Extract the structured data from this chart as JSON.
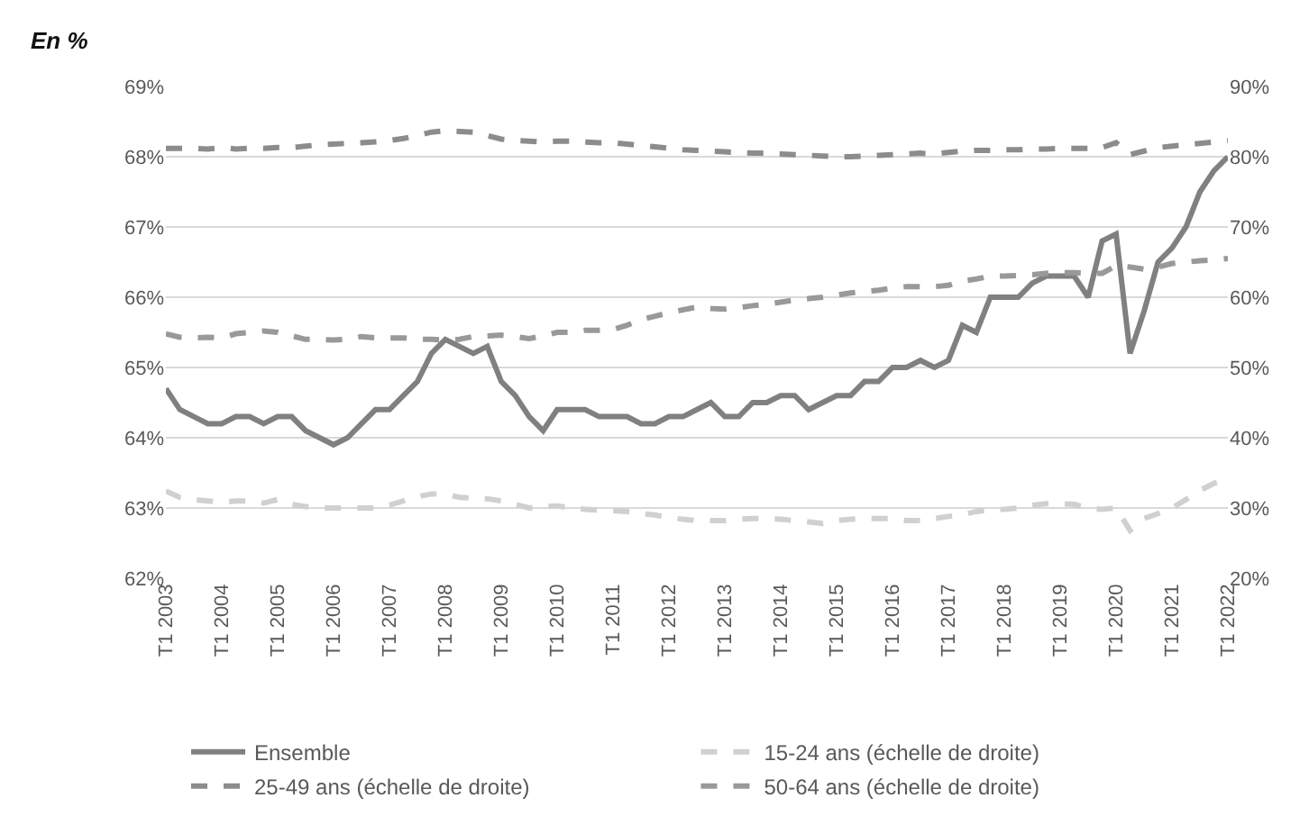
{
  "chart_data": {
    "type": "line",
    "annotations": [
      "En %"
    ],
    "categories": [
      "T1 2003",
      null,
      null,
      null,
      "T1 2004",
      null,
      null,
      null,
      "T1 2005",
      null,
      null,
      null,
      "T1 2006",
      null,
      null,
      null,
      "T1 2007",
      null,
      null,
      null,
      "T1 2008",
      null,
      null,
      null,
      "T1 2009",
      null,
      null,
      null,
      "T1 2010",
      null,
      null,
      null,
      "T1 2011",
      null,
      null,
      null,
      "T1 2012",
      null,
      null,
      null,
      "T1 2013",
      null,
      null,
      null,
      "T1 2014",
      null,
      null,
      null,
      "T1 2015",
      null,
      null,
      null,
      "T1 2016",
      null,
      null,
      null,
      "T1 2017",
      null,
      null,
      null,
      "T1 2018",
      null,
      null,
      null,
      "T1 2019",
      null,
      null,
      null,
      "T1 2020",
      null,
      null,
      null,
      "T1 2021",
      null,
      null,
      null,
      "T1 2022"
    ],
    "ylim": [
      62,
      69
    ],
    "yticks": [
      {
        "value": 62,
        "label": "62%"
      },
      {
        "value": 63,
        "label": "63%"
      },
      {
        "value": 64,
        "label": "64%"
      },
      {
        "value": 65,
        "label": "65%"
      },
      {
        "value": 66,
        "label": "66%"
      },
      {
        "value": 67,
        "label": "67%"
      },
      {
        "value": 68,
        "label": "68%"
      },
      {
        "value": 69,
        "label": "69%"
      }
    ],
    "y2lim": [
      20,
      90
    ],
    "y2ticks": [
      {
        "value": 20,
        "label": "20%"
      },
      {
        "value": 30,
        "label": "30%"
      },
      {
        "value": 40,
        "label": "40%"
      },
      {
        "value": 50,
        "label": "50%"
      },
      {
        "value": 60,
        "label": "60%"
      },
      {
        "value": 70,
        "label": "70%"
      },
      {
        "value": 80,
        "label": "80%"
      },
      {
        "value": 90,
        "label": "90%"
      }
    ],
    "grid": "y",
    "legend": "bottom",
    "marker": "none",
    "series": [
      {
        "name": "Ensemble",
        "color": "#808080",
        "line_style": "solid",
        "values": [
          64.7,
          64.4,
          64.3,
          64.2,
          64.2,
          64.3,
          64.3,
          64.2,
          64.3,
          64.3,
          64.1,
          64.0,
          63.9,
          64.0,
          64.2,
          64.4,
          64.4,
          64.6,
          64.8,
          65.2,
          65.4,
          65.3,
          65.2,
          65.3,
          64.8,
          64.6,
          64.3,
          64.1,
          64.4,
          64.4,
          64.4,
          64.3,
          64.3,
          64.3,
          64.2,
          64.2,
          64.3,
          64.3,
          64.4,
          64.5,
          64.3,
          64.3,
          64.5,
          64.5,
          64.6,
          64.6,
          64.4,
          64.5,
          64.6,
          64.6,
          64.8,
          64.8,
          65.0,
          65.0,
          65.1,
          65.0,
          65.1,
          65.6,
          65.5,
          66.0,
          66.0,
          66.0,
          66.2,
          66.3,
          66.3,
          66.3,
          66.0,
          66.8,
          66.9,
          65.2,
          65.8,
          66.5,
          66.7,
          67.0,
          67.5,
          67.8,
          68.0
        ]
      },
      {
        "name": "15-24 ans (échelle de droite)",
        "color": "#d0d0d0",
        "line_style": "dashed",
        "axis": "y2",
        "values": [
          32.4,
          31.5,
          31.2,
          31.0,
          30.8,
          31.0,
          31.0,
          30.7,
          31.2,
          30.5,
          30.2,
          30.0,
          30.0,
          30.0,
          30.0,
          30.0,
          30.4,
          31.0,
          31.6,
          32.0,
          32.0,
          31.5,
          31.4,
          31.3,
          31.0,
          30.5,
          30.0,
          30.2,
          30.3,
          30.0,
          29.8,
          29.7,
          29.6,
          29.5,
          29.2,
          29.0,
          28.6,
          28.4,
          28.2,
          28.2,
          28.2,
          28.4,
          28.5,
          28.5,
          28.4,
          28.2,
          28.0,
          27.8,
          28.2,
          28.4,
          28.5,
          28.5,
          28.5,
          28.2,
          28.2,
          28.5,
          28.8,
          29.0,
          29.5,
          29.7,
          29.8,
          30.0,
          30.4,
          30.6,
          30.6,
          30.5,
          30.0,
          29.8,
          30.0,
          26.8,
          28.5,
          29.2,
          30.0,
          31.2,
          32.5,
          33.5,
          34.2
        ]
      },
      {
        "name": "25-49 ans (échelle de droite)",
        "color": "#8c8c8c",
        "line_style": "dashed",
        "axis": "y2",
        "values": [
          81.2,
          81.2,
          81.2,
          81.1,
          81.3,
          81.1,
          81.2,
          81.2,
          81.3,
          81.3,
          81.5,
          81.7,
          81.8,
          81.9,
          82.0,
          82.1,
          82.3,
          82.6,
          83.0,
          83.5,
          83.7,
          83.6,
          83.5,
          83.0,
          82.5,
          82.3,
          82.2,
          82.1,
          82.2,
          82.2,
          82.1,
          82.0,
          82.0,
          81.8,
          81.6,
          81.4,
          81.2,
          81.0,
          80.9,
          80.8,
          80.7,
          80.6,
          80.5,
          80.5,
          80.4,
          80.3,
          80.2,
          80.1,
          80.0,
          80.0,
          80.1,
          80.2,
          80.3,
          80.4,
          80.5,
          80.4,
          80.6,
          80.8,
          80.9,
          80.9,
          81.0,
          81.0,
          81.1,
          81.1,
          81.2,
          81.2,
          81.2,
          81.3,
          82.0,
          80.3,
          80.8,
          81.3,
          81.5,
          81.7,
          81.9,
          82.1,
          82.3
        ]
      },
      {
        "name": "50-64 ans (échelle de droite)",
        "color": "#999999",
        "line_style": "dashed",
        "axis": "y2",
        "values": [
          54.8,
          54.3,
          54.2,
          54.3,
          54.2,
          54.8,
          55.0,
          55.2,
          55.0,
          54.5,
          54.0,
          54.0,
          53.9,
          54.0,
          54.4,
          54.2,
          54.2,
          54.2,
          54.0,
          54.0,
          53.9,
          54.0,
          54.4,
          54.5,
          54.6,
          54.4,
          54.1,
          54.5,
          55.0,
          55.0,
          55.3,
          55.3,
          55.4,
          56.0,
          56.8,
          57.3,
          57.8,
          58.2,
          58.6,
          58.4,
          58.3,
          58.5,
          58.8,
          59.0,
          59.3,
          59.6,
          59.8,
          60.0,
          60.3,
          60.6,
          60.8,
          61.0,
          61.3,
          61.5,
          61.5,
          61.5,
          61.7,
          62.3,
          62.6,
          63.0,
          63.0,
          63.1,
          63.2,
          63.4,
          63.5,
          63.5,
          63.4,
          63.4,
          64.5,
          64.3,
          64.0,
          64.3,
          64.8,
          65.0,
          65.2,
          65.3,
          65.5
        ]
      }
    ]
  }
}
